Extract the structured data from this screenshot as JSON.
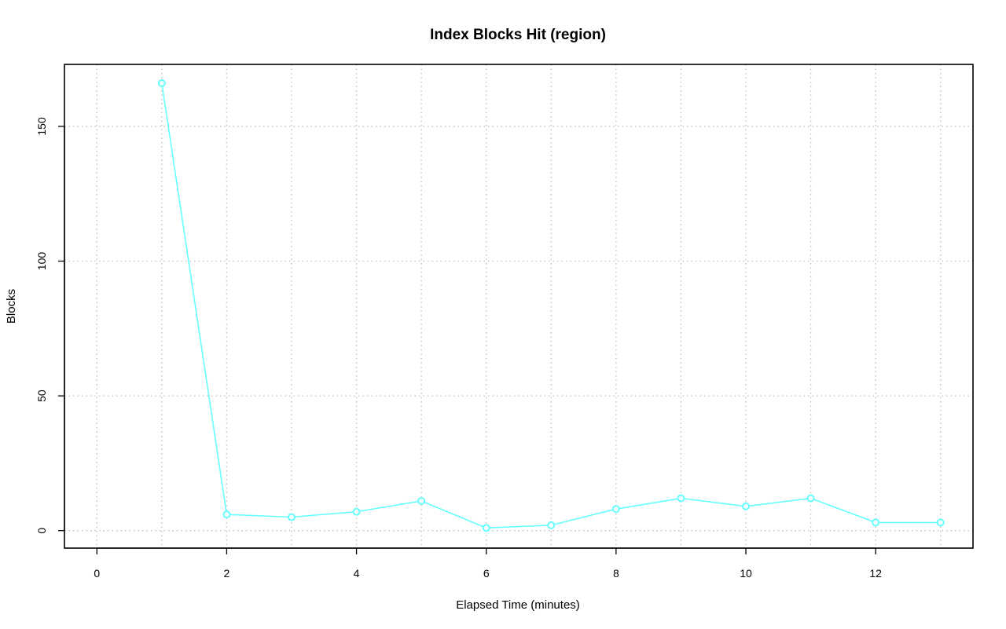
{
  "chart_data": {
    "type": "line",
    "title": "Index Blocks Hit (region)",
    "xlabel": "Elapsed Time (minutes)",
    "ylabel": "Blocks",
    "xlim": [
      -0.5,
      13.5
    ],
    "ylim": [
      -6.5,
      173
    ],
    "xticks": [
      0,
      2,
      4,
      6,
      8,
      10,
      12
    ],
    "yticks": [
      0,
      50,
      100,
      150
    ],
    "grid": true,
    "series": [
      {
        "color": "#66ffff",
        "x": [
          1,
          2,
          3,
          4,
          5,
          6,
          7,
          8,
          9,
          10,
          11,
          12,
          13
        ],
        "y": [
          166,
          6,
          5,
          7,
          11,
          1,
          2,
          8,
          12,
          9,
          12,
          3,
          3
        ]
      }
    ]
  }
}
